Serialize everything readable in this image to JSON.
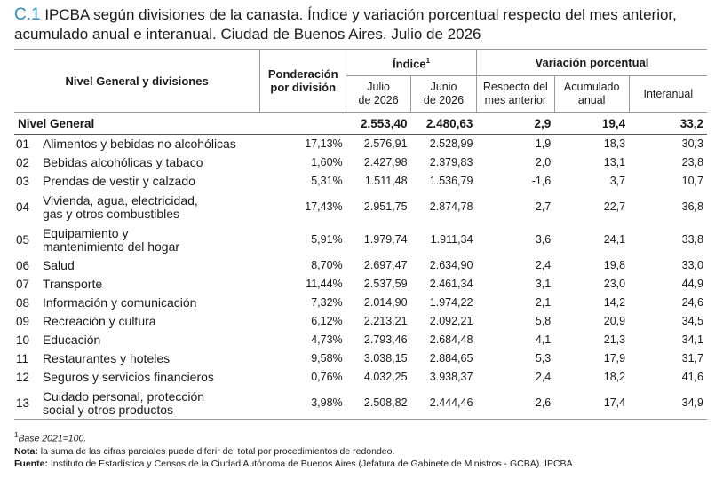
{
  "title": {
    "code": "C.1",
    "text": "IPCBA según divisiones de la canasta. Índice y variación porcentual respecto del mes anterior, acumulado anual e interanual. Ciudad de Buenos Aires. Julio de 2026"
  },
  "header": {
    "divisions": "Nivel General y divisiones",
    "weight_line1": "Ponderación",
    "weight_line2": "por división",
    "index": "Índice",
    "index_sup": "1",
    "jul_line1": "Julio",
    "jul_line2": "de 2026",
    "jun_line1": "Junio",
    "jun_line2": "de 2026",
    "variation": "Variación porcentual",
    "prev_line1": "Respecto del",
    "prev_line2": "mes anterior",
    "acc_line1": "Acumulado",
    "acc_line2": "anual",
    "yoy": "Interanual"
  },
  "general": {
    "name": "Nivel General",
    "jul": "2.553,40",
    "jun": "2.480,63",
    "prev": "2,9",
    "acc": "19,4",
    "yoy": "33,2"
  },
  "rows": [
    {
      "code": "01",
      "name1": "Alimentos y bebidas no alcohólicas",
      "name2": "",
      "weight": "17,13%",
      "jul": "2.576,91",
      "jun": "2.528,99",
      "prev": "1,9",
      "acc": "18,3",
      "yoy": "30,3"
    },
    {
      "code": "02",
      "name1": "Bebidas alcohólicas y tabaco",
      "name2": "",
      "weight": "1,60%",
      "jul": "2.427,98",
      "jun": "2.379,83",
      "prev": "2,0",
      "acc": "13,1",
      "yoy": "23,8"
    },
    {
      "code": "03",
      "name1": "Prendas de vestir y calzado",
      "name2": "",
      "weight": "5,31%",
      "jul": "1.511,48",
      "jun": "1.536,79",
      "prev": "-1,6",
      "acc": "3,7",
      "yoy": "10,7"
    },
    {
      "code": "04",
      "name1": "Vivienda, agua, electricidad,",
      "name2": "gas y otros combustibles",
      "weight": "17,43%",
      "jul": "2.951,75",
      "jun": "2.874,78",
      "prev": "2,7",
      "acc": "22,7",
      "yoy": "36,8"
    },
    {
      "code": "05",
      "name1": "Equipamiento y",
      "name2": "mantenimiento del hogar",
      "weight": "5,91%",
      "jul": "1.979,74",
      "jun": "1.911,34",
      "prev": "3,6",
      "acc": "24,1",
      "yoy": "33,8"
    },
    {
      "code": "06",
      "name1": "Salud",
      "name2": "",
      "weight": "8,70%",
      "jul": "2.697,47",
      "jun": "2.634,90",
      "prev": "2,4",
      "acc": "19,8",
      "yoy": "33,0"
    },
    {
      "code": "07",
      "name1": "Transporte",
      "name2": "",
      "weight": "11,44%",
      "jul": "2.537,59",
      "jun": "2.461,34",
      "prev": "3,1",
      "acc": "23,0",
      "yoy": "44,9"
    },
    {
      "code": "08",
      "name1": "Información y comunicación",
      "name2": "",
      "weight": "7,32%",
      "jul": "2.014,90",
      "jun": "1.974,22",
      "prev": "2,1",
      "acc": "14,2",
      "yoy": "24,6"
    },
    {
      "code": "09",
      "name1": "Recreación y cultura",
      "name2": "",
      "weight": "6,12%",
      "jul": "2.213,21",
      "jun": "2.092,21",
      "prev": "5,8",
      "acc": "20,9",
      "yoy": "34,5"
    },
    {
      "code": "10",
      "name1": "Educación",
      "name2": "",
      "weight": "4,73%",
      "jul": "2.793,46",
      "jun": "2.684,48",
      "prev": "4,1",
      "acc": "21,3",
      "yoy": "34,1"
    },
    {
      "code": "11",
      "name1": "Restaurantes y hoteles",
      "name2": "",
      "weight": "9,58%",
      "jul": "3.038,15",
      "jun": "2.884,65",
      "prev": "5,3",
      "acc": "17,9",
      "yoy": "31,7"
    },
    {
      "code": "12",
      "name1": "Seguros y servicios financieros",
      "name2": "",
      "weight": "0,76%",
      "jul": "4.032,25",
      "jun": "3.938,37",
      "prev": "2,4",
      "acc": "18,2",
      "yoy": "41,6"
    },
    {
      "code": "13",
      "name1": "Cuidado personal, protección",
      "name2": "social y otros productos",
      "weight": "3,98%",
      "jul": "2.508,82",
      "jun": "2.444,46",
      "prev": "2,6",
      "acc": "17,4",
      "yoy": "34,9"
    }
  ],
  "notes": {
    "base_sup": "1",
    "base": "Base 2021=100.",
    "nota_label": "Nota:",
    "nota_text": "la suma de las cifras parciales puede diferir del total por procedimientos de redondeo.",
    "fuente_label": "Fuente:",
    "fuente_text": "Instituto de Estadística y Censos de la Ciudad Autónoma de Buenos Aires (Jefatura de Gabinete de Ministros - GCBA). IPCBA."
  }
}
